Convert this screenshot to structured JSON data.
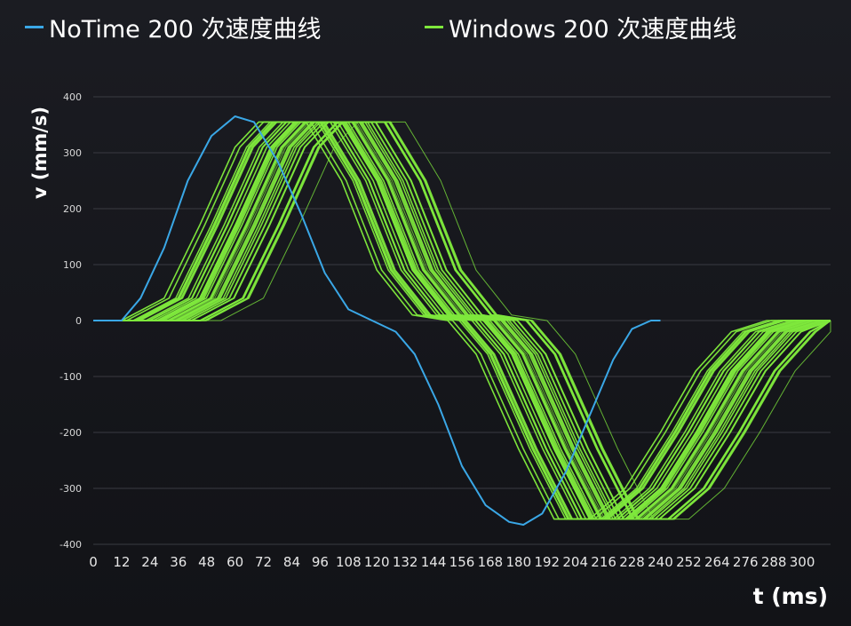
{
  "chart_data": {
    "type": "line",
    "title": "",
    "xlabel": "t (ms)",
    "ylabel": "v (mm/s)",
    "xlim": [
      0,
      312
    ],
    "ylim": [
      -400,
      400
    ],
    "x_ticks": [
      0,
      12,
      24,
      36,
      48,
      60,
      72,
      84,
      96,
      108,
      120,
      132,
      144,
      156,
      168,
      180,
      192,
      204,
      216,
      228,
      240,
      252,
      264,
      276,
      288,
      300
    ],
    "y_ticks": [
      400,
      300,
      200,
      100,
      0,
      -100,
      -200,
      -300,
      -400
    ],
    "grid": "horizontal",
    "legend_position": "top",
    "series": [
      {
        "name": "NoTime 200 次速度曲线",
        "color": "#3aa7e6",
        "x": [
          0,
          12,
          20,
          30,
          40,
          50,
          60,
          68,
          78,
          88,
          98,
          108,
          118,
          128,
          136,
          146,
          156,
          166,
          176,
          182,
          190,
          200,
          210,
          220,
          228,
          236,
          240
        ],
        "y": [
          0,
          0,
          40,
          130,
          250,
          330,
          365,
          355,
          285,
          190,
          85,
          20,
          0,
          -20,
          -60,
          -150,
          -260,
          -330,
          -360,
          -365,
          -345,
          -270,
          -170,
          -70,
          -15,
          0,
          0
        ]
      },
      {
        "name": "Windows 200 次速度曲线",
        "color": "#7ee83c",
        "x": [
          0,
          12,
          30,
          45,
          60,
          70,
          90,
          105,
          120,
          135,
          150,
          162,
          180,
          195,
          210,
          225,
          240,
          255,
          270,
          285,
          300,
          312
        ],
        "y": [
          0,
          0,
          40,
          170,
          310,
          355,
          355,
          250,
          90,
          10,
          0,
          -60,
          -230,
          -355,
          -355,
          -300,
          -200,
          -90,
          -20,
          0,
          0,
          0
        ]
      }
    ]
  }
}
